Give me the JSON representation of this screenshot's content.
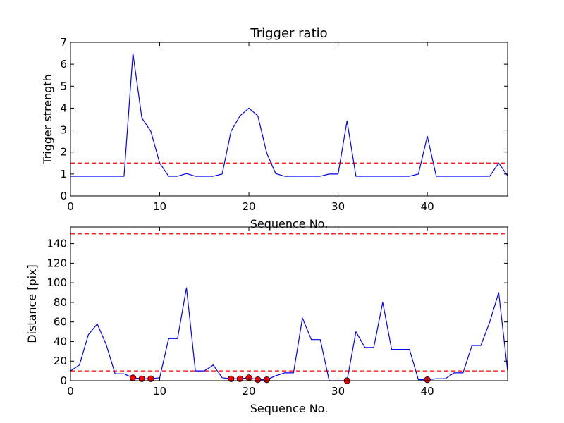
{
  "chart_data": [
    {
      "type": "line",
      "title": "Trigger ratio",
      "xlabel": "Sequence No.",
      "ylabel": "Trigger strength",
      "xlim": [
        0,
        49
      ],
      "ylim": [
        0,
        7
      ],
      "xticks": [
        0,
        10,
        20,
        30,
        40
      ],
      "yticks": [
        0,
        1,
        2,
        3,
        4,
        5,
        6,
        7
      ],
      "grid": false,
      "series": [
        {
          "color": "#0000ff",
          "style": "solid",
          "x": [
            0,
            1,
            2,
            3,
            4,
            5,
            6,
            7,
            8,
            9,
            10,
            11,
            12,
            13,
            14,
            15,
            16,
            17,
            18,
            19,
            20,
            21,
            22,
            23,
            24,
            25,
            26,
            27,
            28,
            29,
            30,
            31,
            32,
            33,
            34,
            35,
            36,
            37,
            38,
            39,
            40,
            41,
            42,
            43,
            44,
            45,
            46,
            47,
            48,
            49
          ],
          "values": [
            0.9,
            0.9,
            0.9,
            0.9,
            0.9,
            0.9,
            0.9,
            6.5,
            3.55,
            2.95,
            1.5,
            0.9,
            0.9,
            1.02,
            0.9,
            0.9,
            0.9,
            1.0,
            2.95,
            3.65,
            4.0,
            3.65,
            1.95,
            1.02,
            0.9,
            0.9,
            0.9,
            0.9,
            0.9,
            1.0,
            1.0,
            3.42,
            0.9,
            0.9,
            0.9,
            0.9,
            0.9,
            0.9,
            0.9,
            1.0,
            2.72,
            0.9,
            0.9,
            0.9,
            0.9,
            0.9,
            0.9,
            0.9,
            1.5,
            0.92
          ]
        }
      ],
      "reference_lines": [
        {
          "axis": "y",
          "value": 1.5,
          "color": "#ff0000",
          "style": "dashed"
        }
      ]
    },
    {
      "type": "line",
      "title": "",
      "xlabel": "Sequence No.",
      "ylabel": "Distance [pix]",
      "xlim": [
        0,
        49
      ],
      "ylim": [
        0,
        157
      ],
      "xticks": [
        0,
        10,
        20,
        30,
        40
      ],
      "yticks": [
        0,
        20,
        40,
        60,
        80,
        100,
        120,
        140
      ],
      "grid": false,
      "series": [
        {
          "color": "#0000ff",
          "style": "solid",
          "x": [
            0,
            1,
            2,
            3,
            4,
            5,
            6,
            7,
            8,
            9,
            10,
            11,
            12,
            13,
            14,
            15,
            16,
            17,
            18,
            19,
            20,
            21,
            22,
            23,
            24,
            25,
            26,
            27,
            28,
            29,
            30,
            31,
            32,
            33,
            34,
            35,
            36,
            37,
            38,
            39,
            40,
            41,
            42,
            43,
            44,
            45,
            46,
            47,
            48,
            49
          ],
          "values": [
            10,
            16,
            47,
            58,
            37,
            7,
            7,
            3,
            2,
            2,
            3,
            43,
            43,
            95,
            10,
            10,
            16,
            3,
            2,
            2,
            3,
            1,
            1,
            5,
            8,
            8,
            64,
            42,
            42,
            0,
            0,
            0,
            50,
            34,
            34,
            80,
            32,
            32,
            32,
            1,
            1,
            2,
            2,
            8,
            8,
            36,
            36,
            60,
            90,
            10
          ]
        }
      ],
      "markers": {
        "color": "#ff0000",
        "shape": "circle",
        "points": [
          {
            "x": 7,
            "y": 3
          },
          {
            "x": 8,
            "y": 2
          },
          {
            "x": 9,
            "y": 2
          },
          {
            "x": 18,
            "y": 2
          },
          {
            "x": 19,
            "y": 2
          },
          {
            "x": 20,
            "y": 3
          },
          {
            "x": 21,
            "y": 1
          },
          {
            "x": 22,
            "y": 1
          },
          {
            "x": 31,
            "y": 0
          },
          {
            "x": 40,
            "y": 1
          }
        ]
      },
      "reference_lines": [
        {
          "axis": "y",
          "value": 10,
          "color": "#ff0000",
          "style": "dashed"
        },
        {
          "axis": "y",
          "value": 150,
          "color": "#ff0000",
          "style": "dashed"
        }
      ]
    }
  ]
}
